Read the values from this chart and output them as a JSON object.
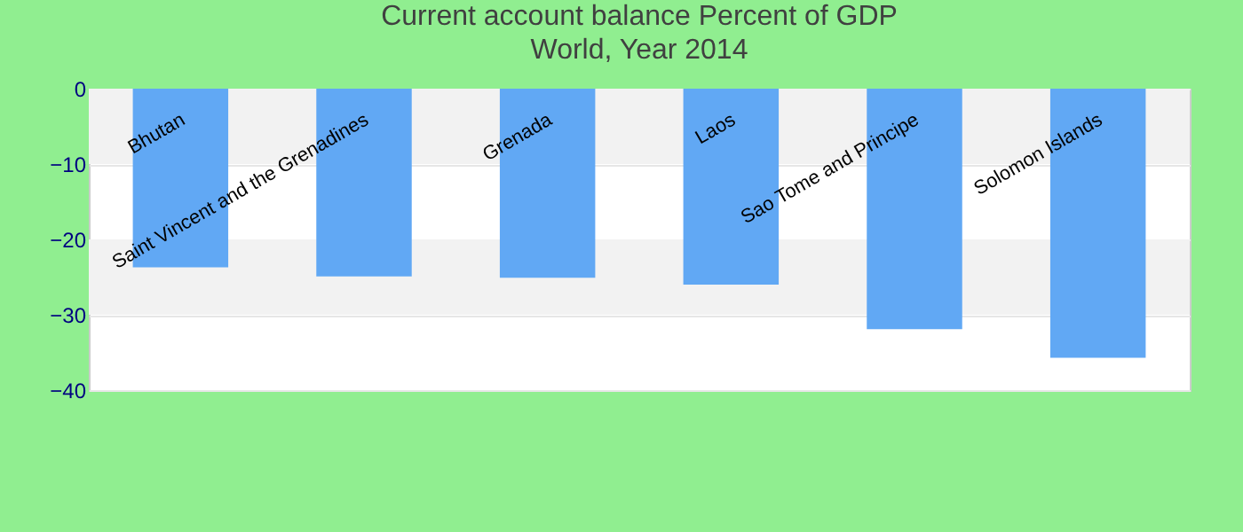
{
  "chart_data": {
    "type": "bar",
    "title": "Current account balance  Percent of GDP",
    "subtitle": "World, Year 2014",
    "categories": [
      "Bhutan",
      "Saint Vincent and the Grenadines",
      "Grenada",
      "Laos",
      "Sao Tome and Principe",
      "Solomon Islands"
    ],
    "values": [
      -23.7,
      -24.9,
      -25.1,
      -26.0,
      -31.9,
      -35.7
    ],
    "color": "#61a8f4",
    "ylim": [
      -40,
      0
    ],
    "yticks": [
      -40,
      -30,
      -20,
      -10,
      0
    ],
    "grid": "y"
  }
}
